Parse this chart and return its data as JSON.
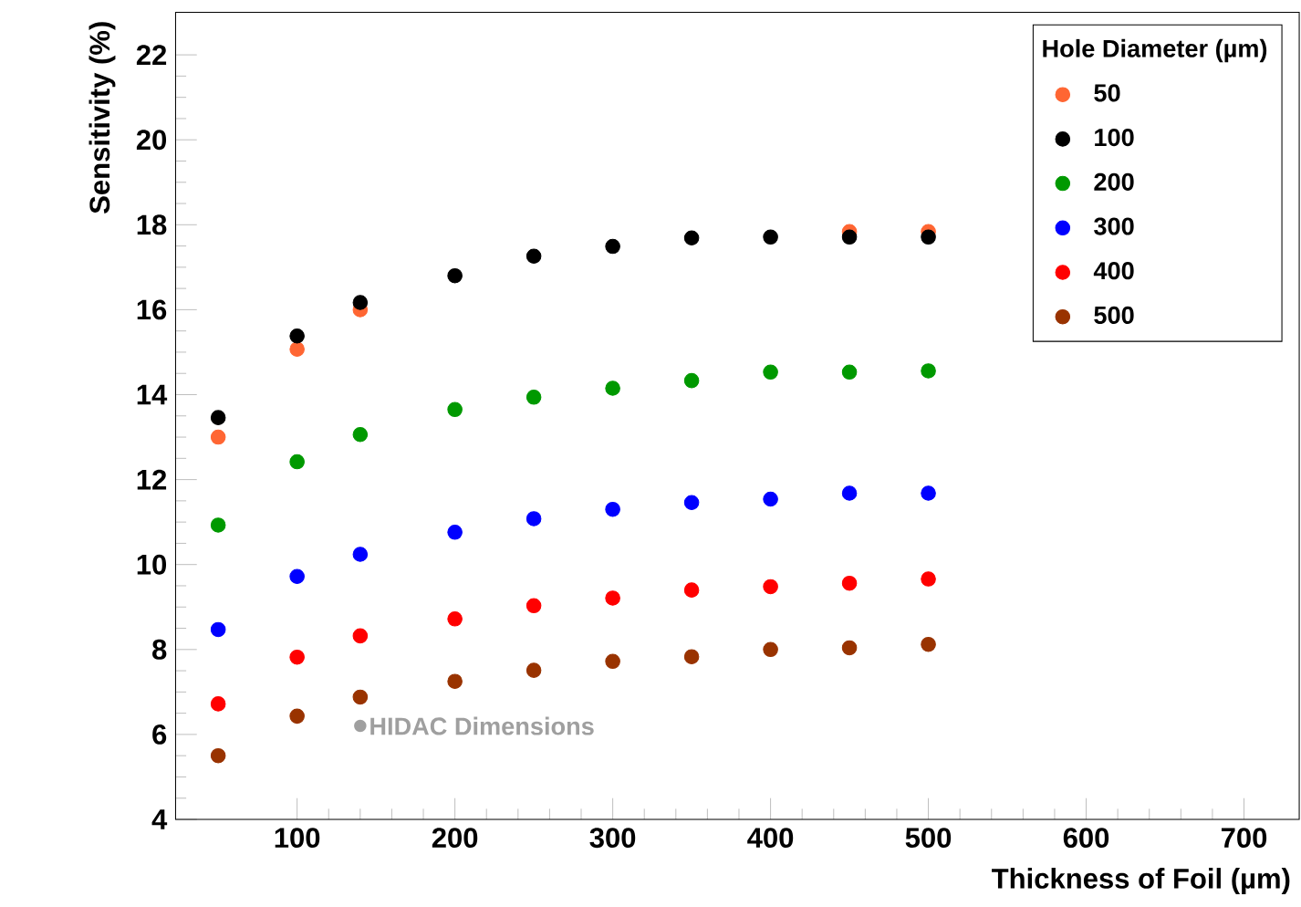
{
  "chart_data": {
    "type": "scatter",
    "xlabel": "Thickness of Foil (µm)",
    "ylabel": "Sensitivity (%)",
    "legend_title": "Hole Diameter (µm)",
    "x": [
      50,
      100,
      140,
      200,
      250,
      300,
      350,
      400,
      450,
      500
    ],
    "series": [
      {
        "name": "50",
        "color": "#ff6633",
        "values": [
          13.0,
          15.07,
          16.0,
          null,
          null,
          null,
          null,
          null,
          17.84,
          17.84
        ]
      },
      {
        "name": "100",
        "color": "#000000",
        "values": [
          13.46,
          15.38,
          16.17,
          16.8,
          17.26,
          17.49,
          17.69,
          17.71,
          17.71,
          17.71
        ]
      },
      {
        "name": "200",
        "color": "#009900",
        "values": [
          10.93,
          12.42,
          13.06,
          13.65,
          13.94,
          14.15,
          14.33,
          14.53,
          14.53,
          14.56
        ]
      },
      {
        "name": "300",
        "color": "#0000ff",
        "values": [
          8.47,
          9.72,
          10.24,
          10.76,
          11.08,
          11.3,
          11.46,
          11.54,
          11.68,
          11.68
        ]
      },
      {
        "name": "400",
        "color": "#ff0000",
        "values": [
          6.72,
          7.82,
          8.32,
          8.72,
          9.03,
          9.21,
          9.4,
          9.48,
          9.56,
          9.66
        ]
      },
      {
        "name": "500",
        "color": "#993300",
        "values": [
          5.5,
          6.43,
          6.88,
          7.25,
          7.51,
          7.72,
          7.83,
          8.0,
          8.04,
          8.12
        ]
      }
    ],
    "annotations": [
      {
        "text": "HIDAC Dimensions",
        "x": 140,
        "y": 6.2
      }
    ],
    "xlim": [
      23,
      735
    ],
    "ylim": [
      4,
      23
    ],
    "xticks": [
      100,
      200,
      300,
      400,
      500,
      600,
      700
    ],
    "yticks": [
      4,
      6,
      8,
      10,
      12,
      14,
      16,
      18,
      20,
      22
    ],
    "grid": false,
    "legend": "top right",
    "marker": "circle"
  }
}
